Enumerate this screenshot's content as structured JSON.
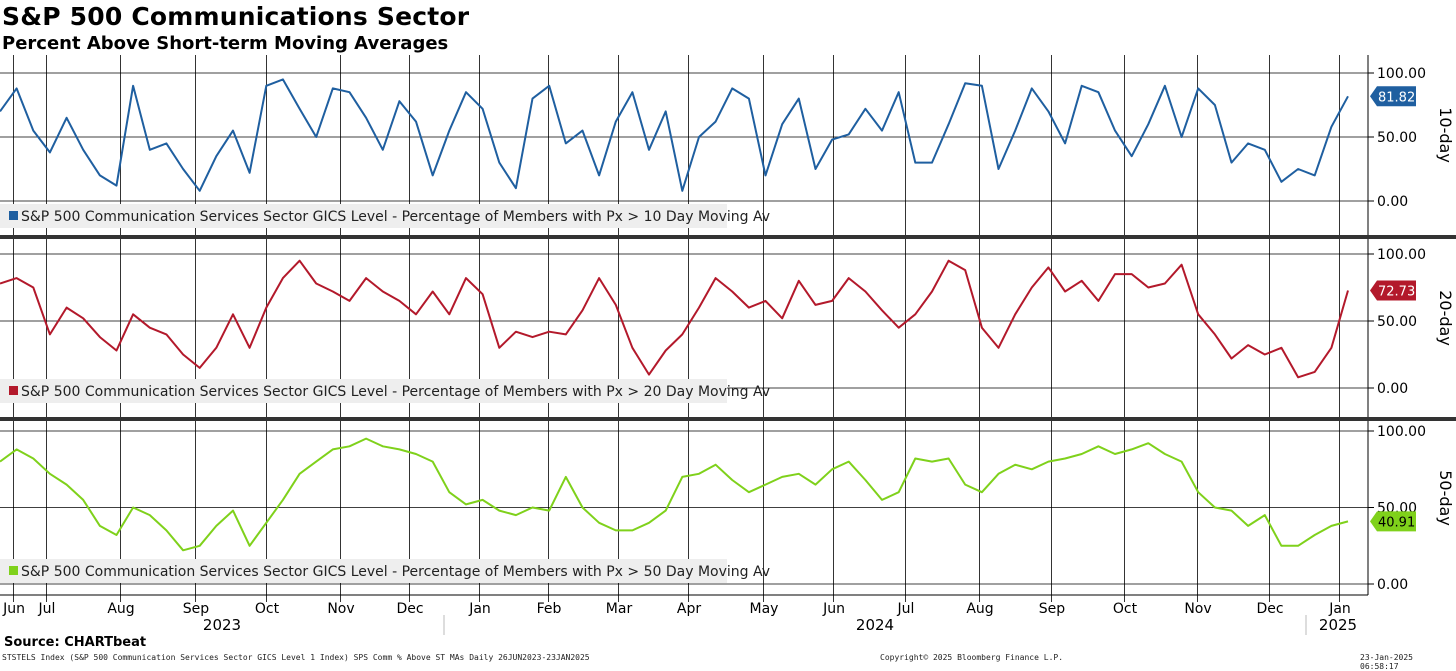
{
  "header": {
    "title": "S&P 500 Communications Sector",
    "subtitle": "Percent Above Short-term Moving Averages"
  },
  "footer": {
    "source": "Source: CHARTbeat",
    "ticker_info": "STSTELS Index (S&P 500 Communication Services Sector GICS Level 1 Index) SPS Comm % Above ST MAs  Daily 26JUN2023-23JAN2025",
    "copyright": "Copyright© 2025 Bloomberg Finance L.P.",
    "timestamp": "23-Jan-2025 06:58:17"
  },
  "chart_data": {
    "type": "line",
    "x_start": "2023-06-26",
    "x_end": "2025-01-23",
    "x_months": [
      "Jun",
      "Jul",
      "Aug",
      "Sep",
      "Oct",
      "Nov",
      "Dec",
      "Jan",
      "Feb",
      "Mar",
      "Apr",
      "May",
      "Jun",
      "Jul",
      "Aug",
      "Sep",
      "Oct",
      "Nov",
      "Dec",
      "Jan"
    ],
    "x_years": [
      "2023",
      "2024",
      "2025"
    ],
    "ylim": [
      0,
      100
    ],
    "yticks": [
      "0.00",
      "50.00",
      "100.00"
    ],
    "panels": [
      {
        "right_label": "10-day",
        "legend": "S&P 500 Communication Services Sector GICS Level - Percentage of Members with Px > 10 Day Moving Av",
        "color": "#1f5fa0",
        "last_value": "81.82",
        "series_weekly": [
          70,
          88,
          55,
          38,
          65,
          40,
          20,
          12,
          90,
          40,
          45,
          25,
          8,
          35,
          55,
          22,
          90,
          95,
          72,
          50,
          88,
          85,
          65,
          40,
          78,
          62,
          20,
          55,
          85,
          72,
          30,
          10,
          80,
          90,
          45,
          55,
          20,
          62,
          85,
          40,
          70,
          8,
          50,
          62,
          88,
          80,
          20,
          60,
          80,
          25,
          48,
          52,
          72,
          55,
          85,
          30,
          30,
          60,
          92,
          90,
          25,
          55,
          88,
          70,
          45,
          90,
          85,
          55,
          35,
          60,
          90,
          50,
          88,
          75,
          30,
          45,
          40,
          15,
          25,
          20,
          58,
          81.82
        ]
      },
      {
        "right_label": "20-day",
        "legend": "S&P 500 Communication Services Sector GICS Level - Percentage of Members with Px > 20 Day Moving Av",
        "color": "#b3192b",
        "last_value": "72.73",
        "series_weekly": [
          78,
          82,
          75,
          40,
          60,
          52,
          38,
          28,
          55,
          45,
          40,
          25,
          15,
          30,
          55,
          30,
          60,
          82,
          95,
          78,
          72,
          65,
          82,
          72,
          65,
          55,
          72,
          55,
          82,
          70,
          30,
          42,
          38,
          42,
          40,
          58,
          82,
          62,
          30,
          10,
          28,
          40,
          60,
          82,
          72,
          60,
          65,
          52,
          80,
          62,
          65,
          82,
          72,
          58,
          45,
          55,
          72,
          95,
          88,
          45,
          30,
          55,
          75,
          90,
          72,
          80,
          65,
          85,
          85,
          75,
          78,
          92,
          55,
          40,
          22,
          32,
          25,
          30,
          8,
          12,
          30,
          72.73
        ]
      },
      {
        "right_label": "50-day",
        "legend": "S&P 500 Communication Services Sector GICS Level - Percentage of Members with Px > 50 Day Moving Av",
        "color": "#7fd11b",
        "last_value": "40.91",
        "series_weekly": [
          80,
          88,
          82,
          72,
          65,
          55,
          38,
          32,
          50,
          45,
          35,
          22,
          25,
          38,
          48,
          25,
          40,
          55,
          72,
          80,
          88,
          90,
          95,
          90,
          88,
          85,
          80,
          60,
          52,
          55,
          48,
          45,
          50,
          48,
          70,
          50,
          40,
          35,
          35,
          40,
          48,
          70,
          72,
          78,
          68,
          60,
          65,
          70,
          72,
          65,
          75,
          80,
          68,
          55,
          60,
          82,
          80,
          82,
          65,
          60,
          72,
          78,
          75,
          80,
          82,
          85,
          90,
          85,
          88,
          92,
          85,
          80,
          60,
          50,
          48,
          38,
          45,
          25,
          25,
          32,
          38,
          40.91
        ]
      }
    ]
  }
}
